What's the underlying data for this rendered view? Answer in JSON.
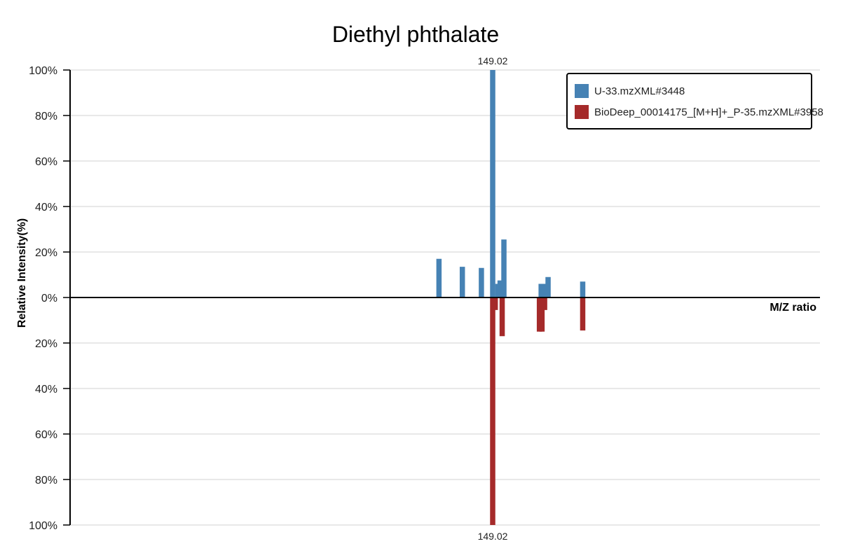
{
  "chart_data": {
    "type": "bar",
    "title": "Diethyl phthalate",
    "xlabel": "M/Z ratio",
    "ylabel": "Relative Intensity(%)",
    "grid": true,
    "legend_position": "top-right",
    "y_ticks_top": [
      "100%",
      "80%",
      "60%",
      "40%",
      "20%",
      "0%"
    ],
    "y_ticks_bottom": [
      "20%",
      "40%",
      "60%",
      "80%",
      "100%"
    ],
    "peak_label_top": "149.02",
    "peak_label_bottom": "149.02",
    "colors": {
      "top": "#4682b4",
      "bottom": "#a52a2a"
    },
    "series": [
      {
        "name": "U-33.mzXML#3448",
        "direction": "up",
        "color": "#4682b4",
        "points": [
          {
            "mz": 118.0,
            "intensity": 17
          },
          {
            "mz": 131.5,
            "intensity": 13.5
          },
          {
            "mz": 142.5,
            "intensity": 13
          },
          {
            "mz": 149.02,
            "intensity": 100
          },
          {
            "mz": 152.0,
            "intensity": 6
          },
          {
            "mz": 153.3,
            "intensity": 7.5
          },
          {
            "mz": 155.5,
            "intensity": 25.5
          },
          {
            "mz": 177.0,
            "intensity": 6
          },
          {
            "mz": 179.0,
            "intensity": 6
          },
          {
            "mz": 181.0,
            "intensity": 9
          },
          {
            "mz": 201.0,
            "intensity": 7
          }
        ]
      },
      {
        "name": "BioDeep_00014175_[M+H]+_P-35.mzXML#3958",
        "direction": "down",
        "color": "#a52a2a",
        "points": [
          {
            "mz": 149.02,
            "intensity": 100
          },
          {
            "mz": 150.5,
            "intensity": 5.5
          },
          {
            "mz": 154.5,
            "intensity": 17
          },
          {
            "mz": 176.0,
            "intensity": 15
          },
          {
            "mz": 177.5,
            "intensity": 15
          },
          {
            "mz": 179.0,
            "intensity": 5.5
          },
          {
            "mz": 201.0,
            "intensity": 14.5
          }
        ]
      }
    ],
    "xlim": [
      -95,
      338
    ]
  }
}
